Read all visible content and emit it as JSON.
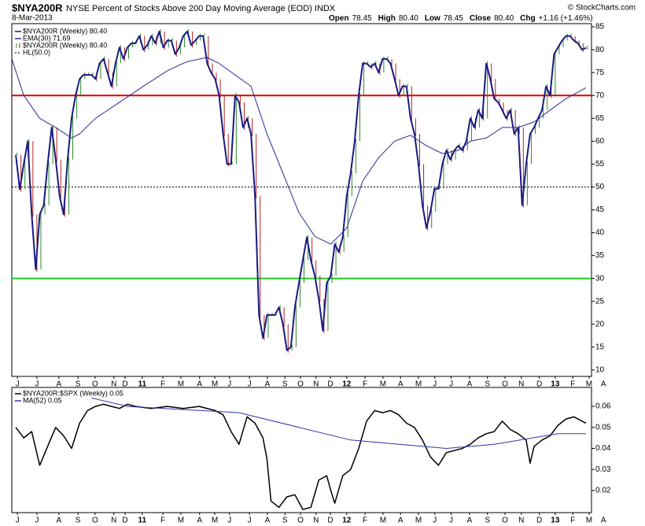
{
  "header": {
    "symbol": "$NYA200R",
    "title": "NYSE Percent of Stocks Above 200 Day Moving Average (EOD) INDX",
    "date": "8-Mar-2013",
    "copyright": "© StockCharts.com",
    "quote": [
      {
        "label": "Open",
        "value": "78.45"
      },
      {
        "label": "High",
        "value": "80.40"
      },
      {
        "label": "Low",
        "value": "78.45"
      },
      {
        "label": "Close",
        "value": "80.40"
      },
      {
        "label": "Chg",
        "value": "+1.16 (+1.46%)"
      }
    ]
  },
  "chart_data": [
    {
      "type": "line",
      "xlim": [
        -1,
        144.4
      ],
      "ylim": [
        8.6,
        85.7
      ],
      "yticks": [
        10,
        15,
        20,
        25,
        30,
        35,
        40,
        45,
        50,
        55,
        60,
        65,
        70,
        75,
        80,
        85
      ],
      "xticks": [
        {
          "value": 0.4,
          "label": "J"
        },
        {
          "value": 5.3,
          "label": "J"
        },
        {
          "value": 10.8,
          "label": "A"
        },
        {
          "value": 15.6,
          "label": "S"
        },
        {
          "value": 19.9,
          "label": "O"
        },
        {
          "value": 24.6,
          "label": "N"
        },
        {
          "value": 27.4,
          "label": "D"
        },
        {
          "value": 31.7,
          "label": "11"
        },
        {
          "value": 36.9,
          "label": "F"
        },
        {
          "value": 41.4,
          "label": "M"
        },
        {
          "value": 46.1,
          "label": "A"
        },
        {
          "value": 49.9,
          "label": "M"
        },
        {
          "value": 53.6,
          "label": "J"
        },
        {
          "value": 58.6,
          "label": "J"
        },
        {
          "value": 63.1,
          "label": "A"
        },
        {
          "value": 67.5,
          "label": "S"
        },
        {
          "value": 71.4,
          "label": "O"
        },
        {
          "value": 75.3,
          "label": "N"
        },
        {
          "value": 78.9,
          "label": "D"
        },
        {
          "value": 83,
          "label": "12"
        },
        {
          "value": 87.6,
          "label": "F"
        },
        {
          "value": 92.1,
          "label": "M"
        },
        {
          "value": 96.5,
          "label": "A"
        },
        {
          "value": 101,
          "label": "M"
        },
        {
          "value": 105.1,
          "label": "J"
        },
        {
          "value": 109.2,
          "label": "J"
        },
        {
          "value": 113.8,
          "label": "A"
        },
        {
          "value": 118.3,
          "label": "S"
        },
        {
          "value": 122.7,
          "label": "O"
        },
        {
          "value": 126.8,
          "label": "N"
        },
        {
          "value": 131.3,
          "label": "D"
        },
        {
          "value": 135.3,
          "label": "13"
        },
        {
          "value": 139.7,
          "label": "F"
        },
        {
          "value": 143.8,
          "label": "M"
        },
        {
          "value": 147.4,
          "label": "A"
        }
      ],
      "series": [
        {
          "name": "$NYA200R (Weekly) 80.40",
          "color": "#1a1a80",
          "style": "line",
          "width": 2,
          "values": [
            57,
            49.5,
            55,
            60,
            44,
            32,
            44,
            46,
            55,
            63,
            56,
            48,
            44,
            56,
            65,
            70,
            73.6,
            74.5,
            74.5,
            74.5,
            73.6,
            77,
            78,
            75,
            72,
            77,
            80.5,
            78,
            80.5,
            81.4,
            81.4,
            83,
            80,
            81,
            83,
            81.4,
            84,
            80.5,
            82,
            82,
            79,
            80.5,
            83,
            84,
            81,
            82,
            83,
            83,
            77,
            75,
            73.6,
            70,
            61.6,
            55,
            55,
            70,
            68.5,
            63,
            65,
            61.6,
            48,
            22,
            17,
            22,
            22,
            22,
            23.7,
            20,
            14.3,
            15,
            23.7,
            29,
            34,
            39,
            34,
            30.6,
            25.5,
            18.6,
            29,
            30.6,
            37.5,
            35.8,
            39,
            48,
            53,
            60,
            70,
            77,
            77,
            76.2,
            77,
            75,
            78,
            78,
            77,
            73.6,
            70,
            72,
            72,
            65,
            61.6,
            55,
            46,
            41,
            44.6,
            49.6,
            49.6,
            55,
            58,
            56,
            58,
            59,
            58,
            60,
            65,
            63,
            66.8,
            65,
            77,
            73.6,
            69.3,
            68.5,
            66.8,
            65,
            66.8,
            61.6,
            63,
            46,
            55,
            61.6,
            63,
            65,
            66.8,
            72,
            70,
            79,
            80.5,
            82,
            83,
            83,
            82,
            81.4,
            80,
            80.4
          ]
        },
        {
          "name": "EMA(30) 71.69",
          "color": "#2b2b9a",
          "style": "line",
          "width": 1,
          "x": [
            -1,
            2,
            6,
            10,
            14,
            16,
            20,
            26,
            32,
            38,
            43,
            48,
            51,
            55,
            59,
            63,
            67,
            71,
            75,
            79,
            83,
            87,
            91,
            95,
            99,
            103,
            107,
            111,
            114,
            118,
            122,
            126,
            130,
            134,
            138,
            143
          ],
          "values": [
            78,
            70,
            65,
            63,
            60.7,
            61.6,
            65,
            68.5,
            72,
            75.4,
            77.4,
            78.3,
            77,
            74.5,
            72,
            61.6,
            53,
            44.4,
            39.2,
            37.5,
            41,
            51.3,
            56.4,
            60,
            61.3,
            59,
            57.3,
            58,
            60,
            60.7,
            63,
            63,
            64.2,
            66.8,
            69.3,
            71.69
          ]
        },
        {
          "name": "$NYA200R (Weekly) 80.40",
          "color": "#1a1a80",
          "style": "bars",
          "up_color": "#2e8b2e",
          "down_color": "#b22222",
          "values": [
            57,
            49.5,
            55,
            60,
            44,
            32,
            44,
            46,
            55,
            63,
            56,
            48,
            44,
            56,
            65,
            70,
            73.6,
            74.5,
            74.5,
            74.5,
            73.6,
            77,
            78,
            75,
            72,
            77,
            80.5,
            78,
            80.5,
            81.4,
            81.4,
            83,
            80,
            81,
            83,
            81.4,
            84,
            80.5,
            82,
            82,
            79,
            80.5,
            83,
            84,
            81,
            82,
            83,
            83,
            77,
            75,
            73.6,
            70,
            61.6,
            55,
            55,
            70,
            68.5,
            63,
            65,
            61.6,
            48,
            22,
            17,
            22,
            22,
            22,
            23.7,
            20,
            14.3,
            15,
            23.7,
            29,
            34,
            39,
            34,
            30.6,
            25.5,
            18.6,
            29,
            30.6,
            37.5,
            35.8,
            39,
            48,
            53,
            60,
            70,
            77,
            77,
            76.2,
            77,
            75,
            78,
            78,
            77,
            73.6,
            70,
            72,
            72,
            65,
            61.6,
            55,
            46,
            41,
            44.6,
            49.6,
            49.6,
            55,
            58,
            56,
            58,
            59,
            58,
            60,
            65,
            63,
            66.8,
            65,
            77,
            73.6,
            69.3,
            68.5,
            66.8,
            65,
            66.8,
            61.6,
            63,
            46,
            55,
            61.6,
            63,
            65,
            66.8,
            72,
            70,
            79,
            80.5,
            82,
            83,
            83,
            82,
            81.4,
            80,
            80.4
          ]
        }
      ],
      "hlines": [
        {
          "name": "HL(50.0)",
          "value": 50,
          "color": "#000000",
          "dashed": true
        },
        {
          "value": 70,
          "color": "#e00000"
        },
        {
          "value": 30,
          "color": "#22cc22"
        }
      ]
    },
    {
      "type": "line",
      "xlim": [
        -1,
        144.4
      ],
      "ylim": [
        0.0095,
        0.069
      ],
      "yticks": [
        0.02,
        0.03,
        0.04,
        0.05,
        0.06
      ],
      "xticks": [
        {
          "value": 0.4,
          "label": "J"
        },
        {
          "value": 5.3,
          "label": "J"
        },
        {
          "value": 10.8,
          "label": "A"
        },
        {
          "value": 15.6,
          "label": "S"
        },
        {
          "value": 19.9,
          "label": "O"
        },
        {
          "value": 24.6,
          "label": "N"
        },
        {
          "value": 27.4,
          "label": "D"
        },
        {
          "value": 31.7,
          "label": "11"
        },
        {
          "value": 36.9,
          "label": "F"
        },
        {
          "value": 41.4,
          "label": "M"
        },
        {
          "value": 46.1,
          "label": "A"
        },
        {
          "value": 49.9,
          "label": "M"
        },
        {
          "value": 53.6,
          "label": "J"
        },
        {
          "value": 58.6,
          "label": "J"
        },
        {
          "value": 63.1,
          "label": "A"
        },
        {
          "value": 67.5,
          "label": "S"
        },
        {
          "value": 71.4,
          "label": "O"
        },
        {
          "value": 75.3,
          "label": "N"
        },
        {
          "value": 78.9,
          "label": "D"
        },
        {
          "value": 83,
          "label": "12"
        },
        {
          "value": 87.6,
          "label": "F"
        },
        {
          "value": 92.1,
          "label": "M"
        },
        {
          "value": 96.5,
          "label": "A"
        },
        {
          "value": 101,
          "label": "M"
        },
        {
          "value": 105.1,
          "label": "J"
        },
        {
          "value": 109.2,
          "label": "J"
        },
        {
          "value": 113.8,
          "label": "A"
        },
        {
          "value": 118.3,
          "label": "S"
        },
        {
          "value": 122.7,
          "label": "O"
        },
        {
          "value": 126.8,
          "label": "N"
        },
        {
          "value": 131.3,
          "label": "D"
        },
        {
          "value": 135.3,
          "label": "13"
        },
        {
          "value": 139.7,
          "label": "F"
        },
        {
          "value": 143.8,
          "label": "M"
        },
        {
          "value": 147.4,
          "label": "A"
        }
      ],
      "series": [
        {
          "name": "$NYA200R:$SPX (Weekly) 0.05",
          "color": "#000000",
          "style": "line",
          "width": 1.5,
          "x": [
            0,
            2,
            4,
            6,
            8,
            10,
            12,
            14,
            16,
            18,
            20,
            22,
            24,
            26,
            28,
            30,
            34,
            38,
            42,
            46,
            50,
            52,
            54,
            56,
            58,
            60,
            62,
            63,
            64,
            66,
            68,
            70,
            72,
            74,
            76,
            78,
            79,
            80,
            82,
            84,
            86,
            88,
            90,
            92,
            94,
            96,
            98,
            100,
            102,
            104,
            106,
            108,
            110,
            112,
            114,
            116,
            118,
            120,
            122,
            124,
            126,
            128,
            129,
            130,
            132,
            134,
            136,
            138,
            140,
            143
          ],
          "values": [
            0.05,
            0.045,
            0.048,
            0.032,
            0.041,
            0.05,
            0.046,
            0.04,
            0.052,
            0.058,
            0.06,
            0.061,
            0.06,
            0.059,
            0.061,
            0.06,
            0.059,
            0.06,
            0.059,
            0.06,
            0.058,
            0.056,
            0.048,
            0.042,
            0.055,
            0.052,
            0.045,
            0.035,
            0.015,
            0.012,
            0.017,
            0.018,
            0.011,
            0.012,
            0.025,
            0.027,
            0.02,
            0.014,
            0.027,
            0.03,
            0.04,
            0.053,
            0.058,
            0.057,
            0.058,
            0.056,
            0.052,
            0.05,
            0.044,
            0.036,
            0.032,
            0.038,
            0.039,
            0.04,
            0.042,
            0.045,
            0.047,
            0.048,
            0.053,
            0.049,
            0.047,
            0.044,
            0.033,
            0.041,
            0.044,
            0.046,
            0.051,
            0.054,
            0.055,
            0.052
          ]
        },
        {
          "name": "MA(52) 0.05",
          "color": "#3333aa",
          "style": "line",
          "width": 1,
          "x": [
            19,
            28,
            56,
            84,
            108,
            120,
            136,
            143
          ],
          "values": [
            0.064,
            0.06,
            0.057,
            0.044,
            0.04,
            0.042,
            0.047,
            0.047
          ]
        }
      ]
    }
  ]
}
